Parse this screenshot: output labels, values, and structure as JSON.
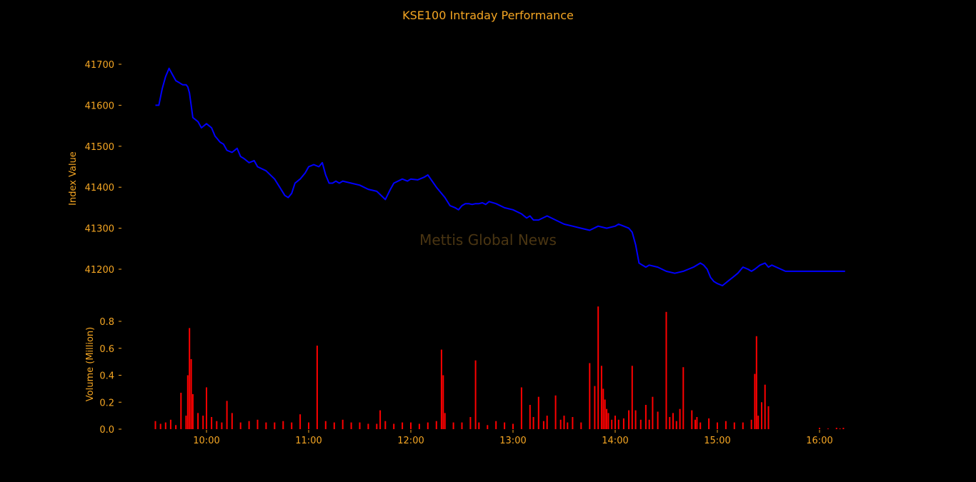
{
  "chart_data": [
    {
      "type": "line",
      "title": "KSE100 Intraday Performance",
      "ylabel": "Index Value",
      "xlabel": "",
      "watermark": "Mettis Global News",
      "ylim": [
        41155,
        41715
      ],
      "yticks": [
        41200,
        41300,
        41400,
        41500,
        41600,
        41700
      ],
      "ytick_labels": [
        "41200",
        "41300",
        "41400",
        "41500",
        "41600",
        "41700"
      ],
      "line_color": "#0000FF",
      "grid": false,
      "series": [
        {
          "x": [
            "09:30",
            "09:32",
            "09:34",
            "09:36",
            "09:38",
            "09:40",
            "09:42",
            "09:44",
            "09:46",
            "09:48",
            "09:49",
            "09:50",
            "09:52",
            "09:55",
            "09:57",
            "10:00",
            "10:03",
            "10:05",
            "10:08",
            "10:10",
            "10:12",
            "10:15",
            "10:18",
            "10:20",
            "10:22",
            "10:25",
            "10:28",
            "10:30",
            "10:35",
            "10:40",
            "10:43",
            "10:46",
            "10:48",
            "10:50",
            "10:52",
            "10:55",
            "10:58",
            "11:00",
            "11:03",
            "11:06",
            "11:08",
            "11:10",
            "11:12",
            "11:14",
            "11:16",
            "11:18",
            "11:20",
            "11:25",
            "11:30",
            "11:35",
            "11:40",
            "11:45",
            "11:48",
            "11:50",
            "11:55",
            "11:58",
            "12:00",
            "12:04",
            "12:08",
            "12:10",
            "12:15",
            "12:20",
            "12:23",
            "12:26",
            "12:28",
            "12:30",
            "12:32",
            "12:34",
            "12:36",
            "12:38",
            "12:40",
            "12:42",
            "12:44",
            "12:46",
            "12:50",
            "12:55",
            "13:00",
            "13:05",
            "13:08",
            "13:10",
            "13:12",
            "13:15",
            "13:20",
            "13:25",
            "13:30",
            "13:35",
            "13:40",
            "13:45",
            "13:50",
            "13:55",
            "14:00",
            "14:02",
            "14:05",
            "14:08",
            "14:10",
            "14:12",
            "14:14",
            "14:16",
            "14:18",
            "14:20",
            "14:25",
            "14:30",
            "14:35",
            "14:40",
            "14:43",
            "14:46",
            "14:48",
            "14:50",
            "14:52",
            "14:54",
            "14:56",
            "14:58",
            "15:00",
            "15:03",
            "15:06",
            "15:09",
            "15:12",
            "15:15",
            "15:18",
            "15:20",
            "15:22",
            "15:25",
            "15:28",
            "15:30",
            "15:32",
            "15:40",
            "15:50",
            "16:00",
            "16:10",
            "16:15"
          ],
          "values": [
            41600,
            41600,
            41640,
            41670,
            41690,
            41675,
            41660,
            41655,
            41650,
            41650,
            41645,
            41630,
            41570,
            41560,
            41545,
            41555,
            41545,
            41525,
            41510,
            41505,
            41490,
            41485,
            41495,
            41475,
            41470,
            41460,
            41465,
            41450,
            41440,
            41420,
            41400,
            41380,
            41375,
            41385,
            41410,
            41420,
            41435,
            41450,
            41455,
            41450,
            41460,
            41430,
            41410,
            41410,
            41415,
            41410,
            41415,
            41410,
            41405,
            41395,
            41390,
            41370,
            41395,
            41410,
            41420,
            41415,
            41420,
            41418,
            41425,
            41430,
            41400,
            41375,
            41355,
            41350,
            41345,
            41355,
            41360,
            41360,
            41358,
            41360,
            41360,
            41362,
            41358,
            41365,
            41360,
            41350,
            41345,
            41335,
            41325,
            41330,
            41320,
            41320,
            41330,
            41320,
            41310,
            41305,
            41300,
            41295,
            41305,
            41300,
            41305,
            41310,
            41305,
            41300,
            41290,
            41260,
            41215,
            41210,
            41205,
            41210,
            41205,
            41195,
            41190,
            41195,
            41200,
            41205,
            41210,
            41215,
            41210,
            41200,
            41180,
            41170,
            41165,
            41160,
            41170,
            41180,
            41190,
            41205,
            41200,
            41195,
            41200,
            41210,
            41215,
            41205,
            41210,
            41195,
            41195,
            41195,
            41195,
            41195
          ]
        }
      ]
    },
    {
      "type": "bar",
      "title": "",
      "ylabel": "Volume (Million)",
      "xlabel": "",
      "ylim": [
        0,
        0.92
      ],
      "yticks": [
        0.0,
        0.2,
        0.4,
        0.6,
        0.8
      ],
      "ytick_labels": [
        "0.0",
        "0.2",
        "0.4",
        "0.6",
        "0.8"
      ],
      "bar_color": "#FF0000",
      "grid": false,
      "xtick_labels": [
        "10:00",
        "11:00",
        "12:00",
        "13:00",
        "14:00",
        "15:00",
        "16:00"
      ],
      "xlim": [
        "09:20",
        "16:20"
      ],
      "x": [
        "09:30",
        "09:33",
        "09:36",
        "09:39",
        "09:42",
        "09:45",
        "09:48",
        "09:49",
        "09:50",
        "09:51",
        "09:52",
        "09:55",
        "09:58",
        "10:00",
        "10:03",
        "10:06",
        "10:09",
        "10:12",
        "10:15",
        "10:20",
        "10:25",
        "10:30",
        "10:35",
        "10:40",
        "10:45",
        "10:50",
        "10:55",
        "11:00",
        "11:05",
        "11:10",
        "11:15",
        "11:20",
        "11:25",
        "11:30",
        "11:35",
        "11:40",
        "11:42",
        "11:45",
        "11:50",
        "11:55",
        "12:00",
        "12:05",
        "12:10",
        "12:15",
        "12:18",
        "12:19",
        "12:20",
        "12:25",
        "12:30",
        "12:35",
        "12:38",
        "12:40",
        "12:45",
        "12:50",
        "12:55",
        "13:00",
        "13:05",
        "13:10",
        "13:12",
        "13:15",
        "13:18",
        "13:20",
        "13:25",
        "13:28",
        "13:30",
        "13:32",
        "13:35",
        "13:40",
        "13:45",
        "13:48",
        "13:50",
        "13:52",
        "13:53",
        "13:54",
        "13:55",
        "13:56",
        "13:58",
        "14:00",
        "14:02",
        "14:05",
        "14:08",
        "14:10",
        "14:12",
        "14:15",
        "14:18",
        "14:20",
        "14:22",
        "14:25",
        "14:30",
        "14:32",
        "14:34",
        "14:36",
        "14:38",
        "14:40",
        "14:45",
        "14:47",
        "14:48",
        "14:50",
        "14:55",
        "15:00",
        "15:05",
        "15:10",
        "15:15",
        "15:20",
        "15:22",
        "15:23",
        "15:24",
        "15:26",
        "15:28",
        "15:30",
        "16:00",
        "16:05",
        "16:10",
        "16:12",
        "16:14"
      ],
      "values": [
        0.06,
        0.04,
        0.05,
        0.07,
        0.03,
        0.27,
        0.1,
        0.4,
        0.75,
        0.52,
        0.26,
        0.12,
        0.1,
        0.31,
        0.09,
        0.06,
        0.05,
        0.21,
        0.12,
        0.05,
        0.06,
        0.07,
        0.05,
        0.05,
        0.06,
        0.05,
        0.11,
        0.05,
        0.62,
        0.06,
        0.05,
        0.07,
        0.05,
        0.05,
        0.04,
        0.04,
        0.14,
        0.06,
        0.04,
        0.05,
        0.05,
        0.04,
        0.05,
        0.06,
        0.59,
        0.4,
        0.12,
        0.05,
        0.05,
        0.09,
        0.51,
        0.05,
        0.03,
        0.06,
        0.05,
        0.04,
        0.31,
        0.18,
        0.09,
        0.24,
        0.06,
        0.1,
        0.25,
        0.07,
        0.1,
        0.05,
        0.09,
        0.05,
        0.49,
        0.32,
        0.91,
        0.47,
        0.3,
        0.22,
        0.15,
        0.12,
        0.07,
        0.1,
        0.07,
        0.08,
        0.14,
        0.47,
        0.14,
        0.07,
        0.18,
        0.07,
        0.24,
        0.13,
        0.87,
        0.09,
        0.12,
        0.06,
        0.15,
        0.46,
        0.14,
        0.07,
        0.09,
        0.05,
        0.08,
        0.05,
        0.06,
        0.05,
        0.05,
        0.07,
        0.41,
        0.69,
        0.1,
        0.2,
        0.33,
        0.17,
        0.01,
        0.005,
        0.01,
        0.005,
        0.01
      ]
    }
  ]
}
